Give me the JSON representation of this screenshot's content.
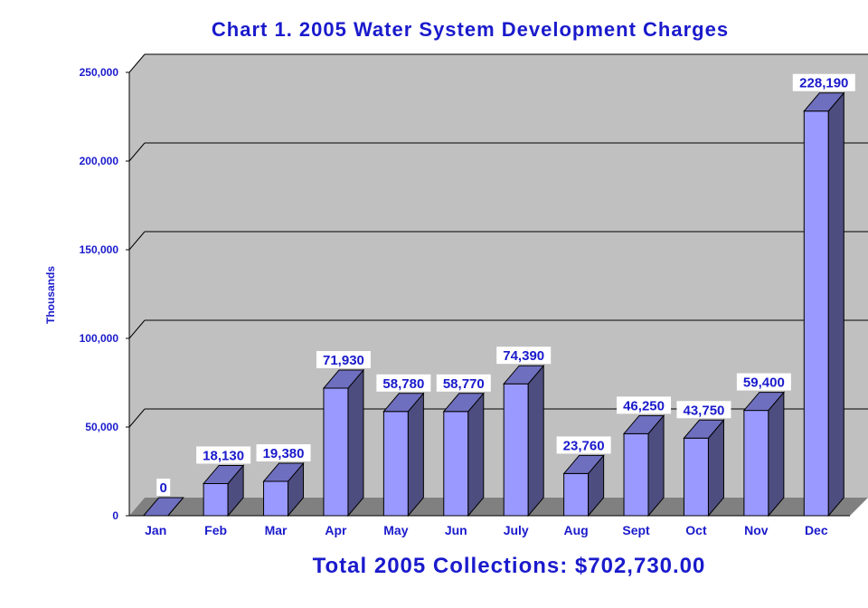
{
  "chart_data": {
    "type": "bar",
    "title": "Chart 1.  2005 Water System Development Charges",
    "ylabel": "Thousands",
    "xlabel": "",
    "categories": [
      "Jan",
      "Feb",
      "Mar",
      "Apr",
      "May",
      "Jun",
      "July",
      "Aug",
      "Sept",
      "Oct",
      "Nov",
      "Dec"
    ],
    "values": [
      0,
      18130,
      19380,
      71930,
      58780,
      58770,
      74390,
      23760,
      46250,
      43750,
      59400,
      228190
    ],
    "data_labels": [
      "0",
      "18,130",
      "19,380",
      "71,930",
      "58,780",
      "58,770",
      "74,390",
      "23,760",
      "46,250",
      "43,750",
      "59,400",
      "228,190"
    ],
    "ylim": [
      0,
      250000
    ],
    "yticks": [
      0,
      50000,
      100000,
      150000,
      200000,
      250000
    ],
    "ytick_labels": [
      "0",
      "50,000",
      "100,000",
      "150,000",
      "200,000",
      "250,000"
    ],
    "grid": true,
    "legend": "none",
    "style": "3d-column",
    "footer": "Total 2005 Collections:  $702,730.00",
    "colors": {
      "bar_front": "#9999ff",
      "bar_side": "#4d4d80",
      "bar_top": "#6f6fc0",
      "back_wall": "#c0c0c0",
      "floor": "#808080",
      "text": "#1a1acc"
    }
  }
}
